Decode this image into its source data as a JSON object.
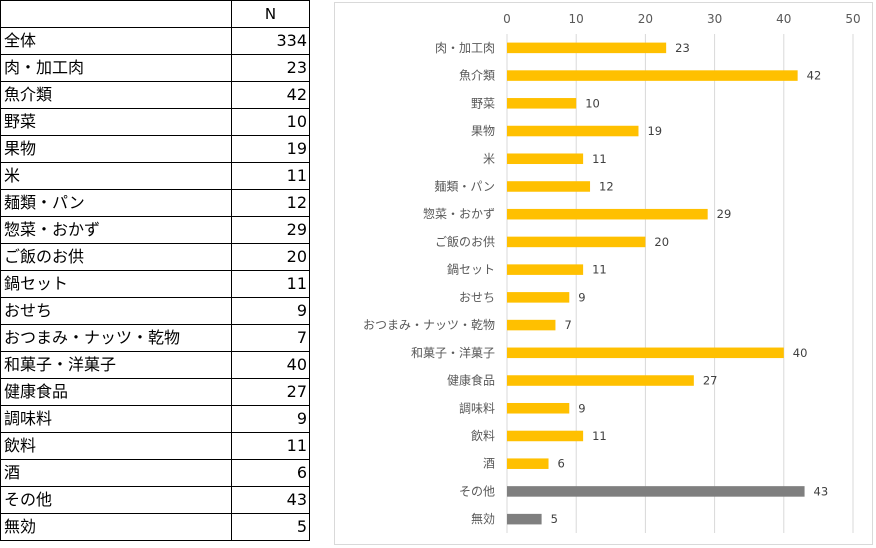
{
  "table": {
    "header_label": "",
    "header_n": "N",
    "rows": [
      {
        "label": "全体",
        "n": "334"
      },
      {
        "label": "肉・加工肉",
        "n": "23"
      },
      {
        "label": "魚介類",
        "n": "42"
      },
      {
        "label": "野菜",
        "n": "10"
      },
      {
        "label": "果物",
        "n": "19"
      },
      {
        "label": "米",
        "n": "11"
      },
      {
        "label": "麺類・パン",
        "n": "12"
      },
      {
        "label": "惣菜・おかず",
        "n": "29"
      },
      {
        "label": "ご飯のお供",
        "n": "20"
      },
      {
        "label": "鍋セット",
        "n": "11"
      },
      {
        "label": "おせち",
        "n": "9"
      },
      {
        "label": "おつまみ・ナッツ・乾物",
        "n": "7"
      },
      {
        "label": "和菓子・洋菓子",
        "n": "40"
      },
      {
        "label": "健康食品",
        "n": "27"
      },
      {
        "label": "調味料",
        "n": "9"
      },
      {
        "label": "飲料",
        "n": "11"
      },
      {
        "label": "酒",
        "n": "6"
      },
      {
        "label": "その他",
        "n": "43"
      },
      {
        "label": "無効",
        "n": "5"
      }
    ]
  },
  "chart_data": {
    "type": "bar",
    "orientation": "horizontal",
    "title": "",
    "xlabel": "",
    "ylabel": "",
    "xlim": [
      0,
      50
    ],
    "x_ticks": [
      0,
      10,
      20,
      30,
      40,
      50
    ],
    "axis_position": "top",
    "grid": true,
    "categories": [
      "肉・加工肉",
      "魚介類",
      "野菜",
      "果物",
      "米",
      "麺類・パン",
      "惣菜・おかず",
      "ご飯のお供",
      "鍋セット",
      "おせち",
      "おつまみ・ナッツ・乾物",
      "和菓子・洋菓子",
      "健康食品",
      "調味料",
      "飲料",
      "酒",
      "その他",
      "無効"
    ],
    "values": [
      23,
      42,
      10,
      19,
      11,
      12,
      29,
      20,
      11,
      9,
      7,
      40,
      27,
      9,
      11,
      6,
      43,
      5
    ],
    "bar_colors": [
      "#ffc000",
      "#ffc000",
      "#ffc000",
      "#ffc000",
      "#ffc000",
      "#ffc000",
      "#ffc000",
      "#ffc000",
      "#ffc000",
      "#ffc000",
      "#ffc000",
      "#ffc000",
      "#ffc000",
      "#ffc000",
      "#ffc000",
      "#ffc000",
      "#7f7f7f",
      "#7f7f7f"
    ]
  }
}
